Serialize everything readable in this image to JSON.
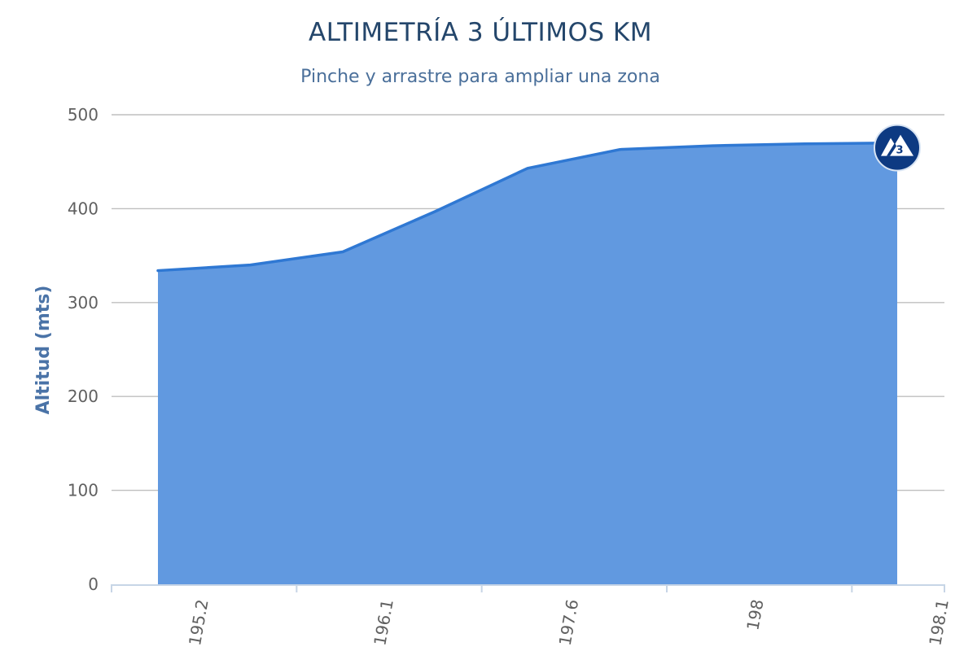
{
  "chart_data": {
    "type": "area",
    "title": "ALTIMETRÍA 3 ÚLTIMOS KM",
    "subtitle": "Pinche y arrastre para ampliar una zona",
    "ylabel": "Altitud (mts)",
    "xlabel": "",
    "ylim": [
      0,
      500
    ],
    "yticks": [
      0,
      100,
      200,
      300,
      400,
      500
    ],
    "x_tick_labels": [
      "195.2",
      "196.1",
      "197.6",
      "198",
      "198.1"
    ],
    "grid": true,
    "series": [
      {
        "values": [
          334,
          340,
          354,
          397,
          443,
          463,
          467,
          469,
          470
        ]
      }
    ],
    "end_marker": {
      "label": "3",
      "icon": "mountain-category-3-icon"
    },
    "colors": {
      "fill": "#6199e0",
      "line": "#2f78d3",
      "marker_bg": "#0d3a82",
      "marker_fg": "#ffffff"
    }
  }
}
